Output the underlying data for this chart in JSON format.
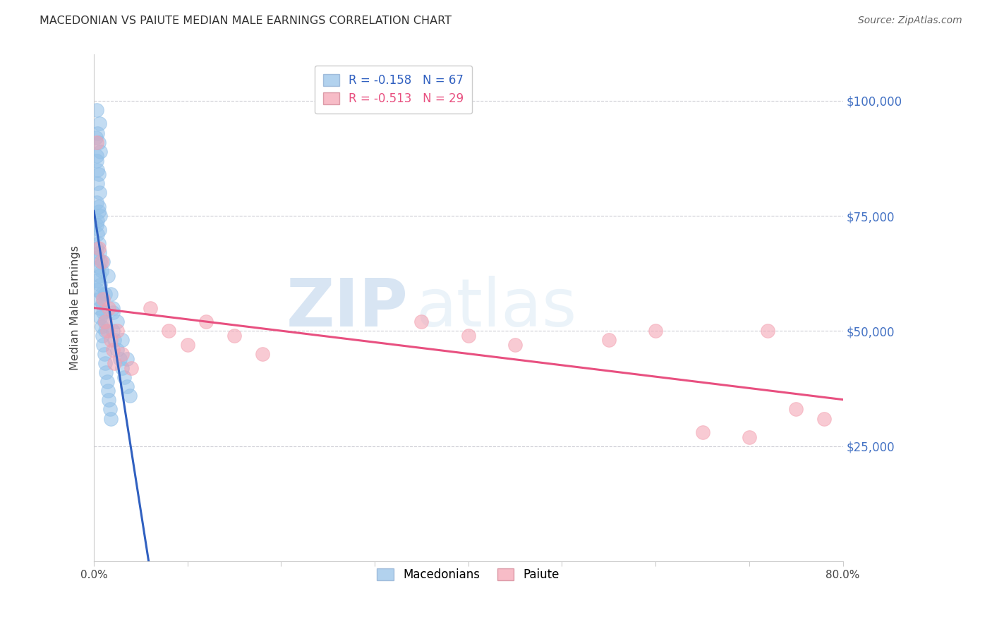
{
  "title": "MACEDONIAN VS PAIUTE MEDIAN MALE EARNINGS CORRELATION CHART",
  "source": "Source: ZipAtlas.com",
  "ylabel": "Median Male Earnings",
  "xlim": [
    0.0,
    0.8
  ],
  "ylim": [
    0,
    110000
  ],
  "yticks": [
    0,
    25000,
    50000,
    75000,
    100000
  ],
  "ytick_labels": [
    "",
    "$25,000",
    "$50,000",
    "$75,000",
    "$100,000"
  ],
  "mac_color": "#92C0E8",
  "pai_color": "#F4A0B0",
  "mac_line_color": "#3060C0",
  "pai_line_color": "#E85080",
  "dash_color": "#BBBBCC",
  "right_label_color": "#4472C4",
  "background_color": "#ffffff",
  "grid_color": "#C8C8D0",
  "watermark_zip": "ZIP",
  "watermark_atlas": "atlas",
  "mac_scatter_x": [
    0.003,
    0.006,
    0.004,
    0.005,
    0.007,
    0.003,
    0.004,
    0.002,
    0.003,
    0.005,
    0.004,
    0.006,
    0.003,
    0.005,
    0.004,
    0.005,
    0.007,
    0.003,
    0.004,
    0.005,
    0.006,
    0.007,
    0.008,
    0.006,
    0.003,
    0.004,
    0.005,
    0.006,
    0.007,
    0.008,
    0.009,
    0.01,
    0.011,
    0.012,
    0.003,
    0.004,
    0.005,
    0.006,
    0.007,
    0.008,
    0.009,
    0.01,
    0.011,
    0.012,
    0.013,
    0.014,
    0.015,
    0.016,
    0.017,
    0.018,
    0.02,
    0.022,
    0.025,
    0.028,
    0.03,
    0.032,
    0.035,
    0.038,
    0.02,
    0.025,
    0.03,
    0.035,
    0.018,
    0.02,
    0.015,
    0.012,
    0.01
  ],
  "mac_scatter_y": [
    98000,
    95000,
    93000,
    91000,
    89000,
    87000,
    85000,
    92000,
    88000,
    84000,
    82000,
    80000,
    78000,
    76000,
    74000,
    77000,
    75000,
    73000,
    71000,
    69000,
    67000,
    65000,
    63000,
    72000,
    68000,
    66000,
    64000,
    62000,
    60000,
    58000,
    56000,
    54000,
    52000,
    50000,
    61000,
    59000,
    57000,
    55000,
    53000,
    51000,
    49000,
    47000,
    45000,
    43000,
    41000,
    39000,
    37000,
    35000,
    33000,
    31000,
    50000,
    48000,
    46000,
    44000,
    42000,
    40000,
    38000,
    36000,
    55000,
    52000,
    48000,
    44000,
    58000,
    54000,
    62000,
    58000,
    65000
  ],
  "pai_scatter_x": [
    0.003,
    0.005,
    0.008,
    0.01,
    0.012,
    0.014,
    0.016,
    0.018,
    0.02,
    0.022,
    0.025,
    0.03,
    0.04,
    0.06,
    0.08,
    0.1,
    0.12,
    0.15,
    0.18,
    0.35,
    0.4,
    0.45,
    0.55,
    0.6,
    0.65,
    0.7,
    0.72,
    0.75,
    0.78
  ],
  "pai_scatter_y": [
    91000,
    68000,
    65000,
    57000,
    52000,
    50000,
    55000,
    48000,
    46000,
    43000,
    50000,
    45000,
    42000,
    55000,
    50000,
    47000,
    52000,
    49000,
    45000,
    52000,
    49000,
    47000,
    48000,
    50000,
    28000,
    27000,
    50000,
    33000,
    31000
  ],
  "mac_trendline_x0": 0.0,
  "mac_trendline_x1": 0.28,
  "pai_trendline_x0": 0.0,
  "pai_trendline_x1": 0.8,
  "dash_trendline_x0": 0.1,
  "dash_trendline_x1": 0.65
}
